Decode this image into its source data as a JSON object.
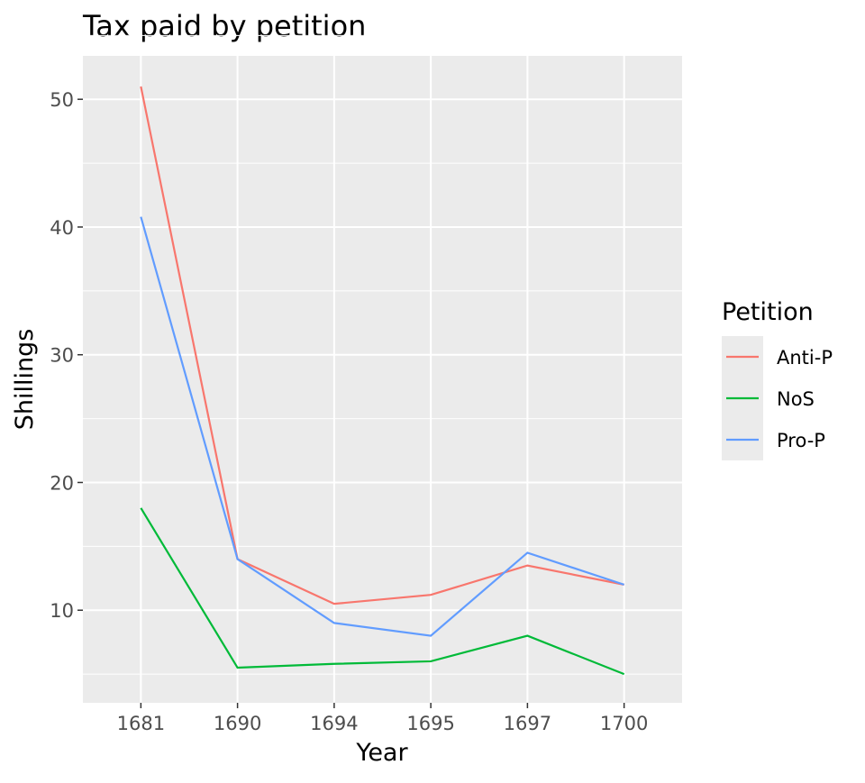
{
  "chart_data": {
    "type": "line",
    "title": "Tax paid by petition",
    "xlabel": "Year",
    "ylabel": "Shillings",
    "categories": [
      "1681",
      "1690",
      "1694",
      "1695",
      "1697",
      "1700"
    ],
    "ylim": [
      2.75,
      53.4
    ],
    "yticks": [
      10,
      20,
      30,
      40,
      50
    ],
    "grid": true,
    "legend": {
      "title": "Petition",
      "placement": "right"
    },
    "series": [
      {
        "name": "Anti-P",
        "color": "#F8766D",
        "values": [
          51.0,
          14.0,
          10.5,
          11.2,
          13.5,
          12.0
        ]
      },
      {
        "name": "NoS",
        "color": "#00BA38",
        "values": [
          18.0,
          5.5,
          5.8,
          6.0,
          8.0,
          5.0
        ]
      },
      {
        "name": "Pro-P",
        "color": "#619CFF",
        "values": [
          40.8,
          14.0,
          9.0,
          8.0,
          14.5,
          12.0
        ]
      }
    ]
  }
}
